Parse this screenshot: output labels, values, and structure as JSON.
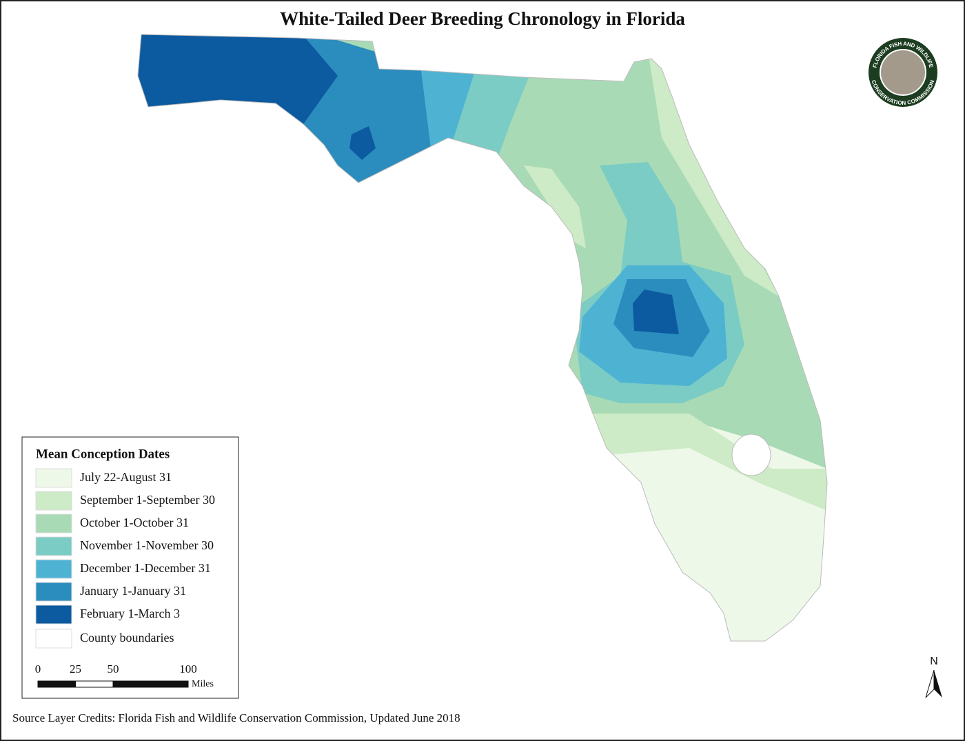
{
  "title": "White-Tailed Deer Breeding Chronology in Florida",
  "legend": {
    "title": "Mean Conception Dates",
    "items": [
      {
        "label": "July 22-August 31",
        "color": "#eef8e8"
      },
      {
        "label": "September 1-September 30",
        "color": "#cdebc6"
      },
      {
        "label": "October 1-October 31",
        "color": "#a8dbb5"
      },
      {
        "label": "November 1-November 30",
        "color": "#7bccc4"
      },
      {
        "label": "December 1-December 31",
        "color": "#4eb3d3"
      },
      {
        "label": "January 1-January 31",
        "color": "#2b8cbe"
      },
      {
        "label": "February 1-March 3",
        "color": "#0c5aa0"
      },
      {
        "label": "County boundaries",
        "color": "#ffffff"
      }
    ]
  },
  "scale_bar": {
    "ticks": [
      0,
      25,
      50,
      100
    ],
    "unit": "Miles"
  },
  "north_arrow": "N",
  "logo": {
    "top_text": "FLORIDA FISH AND WILDLIFE",
    "bottom_text": "CONSERVATION COMMISSION"
  },
  "source": "Source Layer Credits: Florida Fish and Wildlife Conservation Commission, Updated June 2018"
}
